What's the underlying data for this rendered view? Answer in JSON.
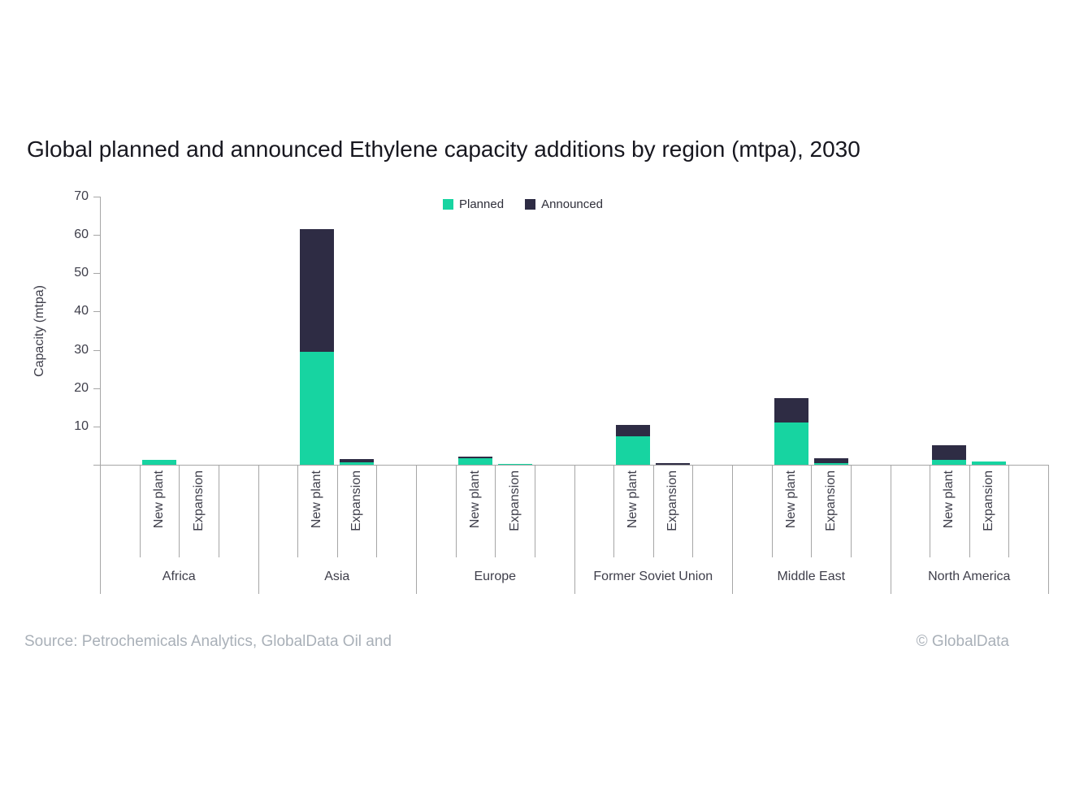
{
  "title": "Global planned and announced Ethylene capacity additions by region (mtpa), 2030",
  "legend": {
    "items": [
      {
        "label": "Planned",
        "color": "#17d4a1"
      },
      {
        "label": "Announced",
        "color": "#2e2c44"
      }
    ]
  },
  "y_axis": {
    "title": "Capacity (mtpa)",
    "min": 0,
    "max": 70,
    "ticks": [
      10,
      20,
      30,
      40,
      50,
      60,
      70
    ]
  },
  "footer": {
    "source": "Source: Petrochemicals Analytics, GlobalData Oil and",
    "copyright": "© GlobalData"
  },
  "colors": {
    "planned": "#17d4a1",
    "announced": "#2e2c44",
    "axis": "#a6a6a6",
    "text": "#3e3e4a",
    "muted": "#a9b0b8"
  },
  "chart_data": {
    "type": "bar",
    "stacked": true,
    "title": "Global planned and announced Ethylene capacity additions by region (mtpa), 2030",
    "ylabel": "Capacity (mtpa)",
    "ylim": [
      0,
      70
    ],
    "grid": false,
    "legend_position": "top-center",
    "categories": [
      "Africa",
      "Asia",
      "Europe",
      "Former Soviet Union",
      "Middle East",
      "North America"
    ],
    "subcategories": [
      "New plant",
      "Expansion"
    ],
    "series": [
      {
        "name": "Planned",
        "color": "#17d4a1",
        "new_plant": [
          1.3,
          29.5,
          1.8,
          7.5,
          11.0,
          1.3
        ],
        "expansion": [
          0.0,
          0.6,
          0.3,
          0.0,
          0.4,
          0.9
        ]
      },
      {
        "name": "Announced",
        "color": "#2e2c44",
        "new_plant": [
          0.0,
          32.0,
          0.4,
          3.0,
          6.3,
          3.7
        ],
        "expansion": [
          0.0,
          0.8,
          0.0,
          0.5,
          1.2,
          0.0
        ]
      }
    ]
  }
}
